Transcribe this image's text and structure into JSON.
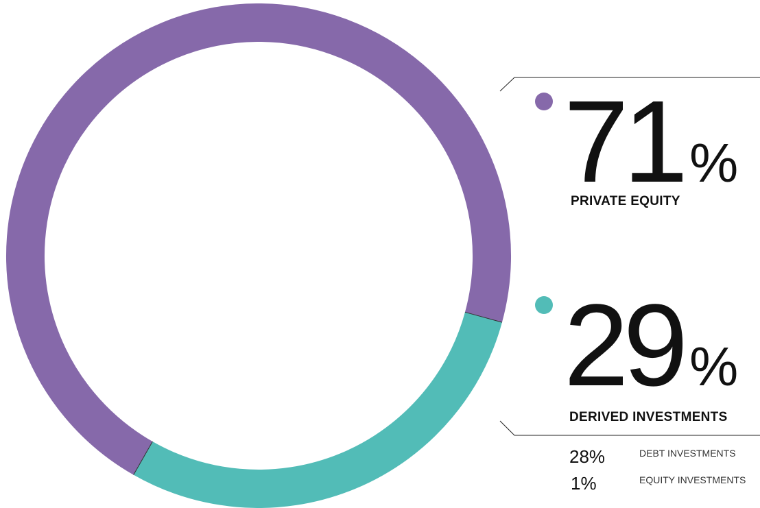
{
  "chart_data": {
    "type": "pie",
    "categories": [
      "PRIVATE EQUITY",
      "DERIVED INVESTMENTS"
    ],
    "values": [
      71,
      29
    ],
    "colors": [
      "#8669aa",
      "#52bcb7"
    ],
    "unit": "%",
    "breakdown": [
      {
        "label": "DEBT INVESTMENTS",
        "value": 28
      },
      {
        "label": "EQUITY INVESTMENTS",
        "value": 1
      }
    ]
  }
}
